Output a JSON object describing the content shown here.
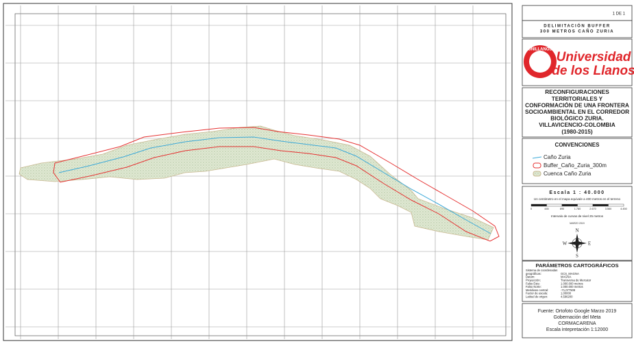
{
  "sheet": "1 DE 1",
  "map_title": [
    "DELIMITACIÓN BUFFER",
    "300 METROS CAÑO ZURIA"
  ],
  "logo": {
    "seal": "UNILLANOS",
    "name": [
      "Universidad",
      "de los Llanos"
    ]
  },
  "project_title": [
    "RECONFIGURACIONES",
    "TERRITORIALES Y",
    "CONFORMACIÓN DE UNA FRONTERA",
    "SOCIOAMBIENTAL EN EL CORREDOR",
    "BIOLÓGICO ZURIA.",
    "VILLAVICENCIO-COLOMBIA",
    "(1980-2015)"
  ],
  "legend": {
    "title": "CONVENCIONES",
    "items": [
      "Caño Zuria",
      "Buffer_Caño_Zuria_300m",
      "Cuenca Caño Zuria"
    ]
  },
  "scale": {
    "title": "Escala 1 : 40.000",
    "note": "Un centimetro en el mapa equivale a 400 metros en el terreno",
    "bar_labels": [
      "0",
      "445",
      "890",
      "1.780",
      "2.670",
      "3.560",
      "4.450"
    ],
    "contours": "Intervalo de curvas de nivel 25 metros",
    "date": "MARZO 2019"
  },
  "compass": {
    "n": "N",
    "s": "S",
    "e": "E",
    "w": "W"
  },
  "parameters": {
    "title": "PARÁMETROS CARTOGRÁFICOS",
    "rows": [
      [
        "Sistema de coordenadas",
        ""
      ],
      [
        "geográficas:",
        "GCS_MAGNA"
      ],
      [
        "Datum:",
        "MAGNA"
      ],
      [
        "Proyección:",
        "Transversa de Mercator"
      ],
      [
        "Falso Este:",
        "1.000.000 metros"
      ],
      [
        "Falso Norte:",
        "1.000.000 metros"
      ],
      [
        "Meridiano central:",
        "-71,077508"
      ],
      [
        "Factor de escala:",
        "1,00000"
      ],
      [
        "Latitud de origen:",
        "4,596200"
      ]
    ]
  },
  "source": [
    "Fuente:  Ortofoto Google Marzo 2019",
    "Gobernación del Meta",
    "CORMACARENA",
    "Escala intepretación 1:12000"
  ]
}
